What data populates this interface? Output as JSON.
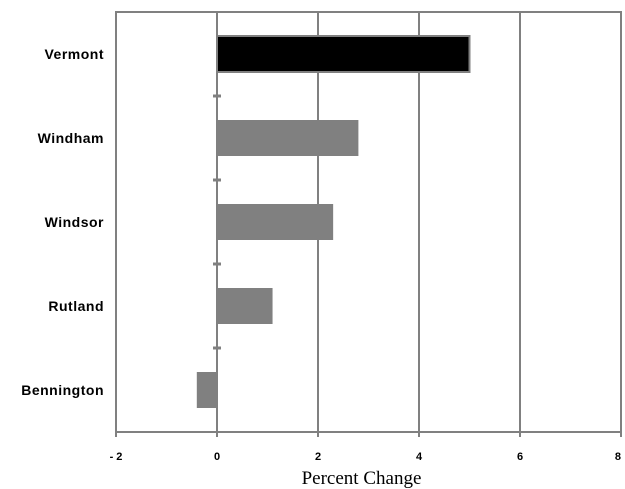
{
  "chart_data": {
    "type": "bar",
    "orientation": "horizontal",
    "title": "",
    "xlabel": "Percent Change",
    "ylabel": "",
    "categories": [
      "Vermont",
      "Windham",
      "Windsor",
      "Rutland",
      "Bennington"
    ],
    "values": [
      5.0,
      2.8,
      2.3,
      1.1,
      -0.4
    ],
    "bar_colors": [
      "#000000",
      "#808080",
      "#808080",
      "#808080",
      "#808080"
    ],
    "xlim": [
      -2,
      8
    ],
    "xticks": [
      -2,
      0,
      2,
      4,
      6,
      8
    ],
    "xtick_labels": [
      "- 2",
      "0",
      "2",
      "4",
      "6",
      "8"
    ],
    "grid": "vertical",
    "legend": "none"
  },
  "colors": {
    "frame": "#808080",
    "grid": "#808080",
    "highlight_bar": "#000000",
    "bar": "#808080"
  }
}
